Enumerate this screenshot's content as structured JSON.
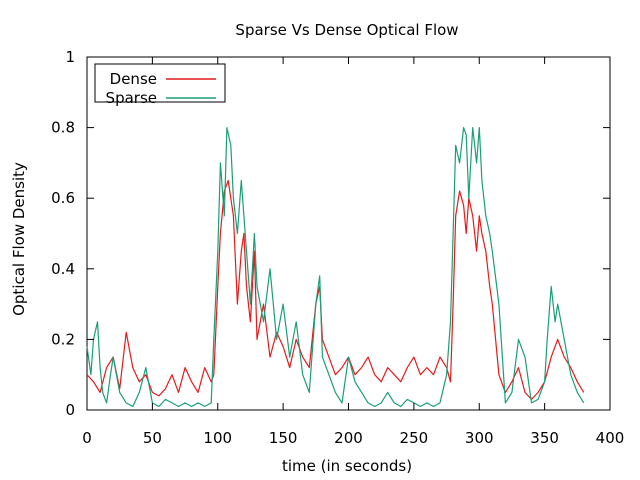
{
  "chart_data": {
    "type": "line",
    "title": "Sparse Vs Dense Optical Flow",
    "xlabel": "time (in seconds)",
    "ylabel": "Optical Flow Density",
    "xlim": [
      0,
      400
    ],
    "ylim": [
      0,
      1
    ],
    "xticks": [
      "0",
      "50",
      "100",
      "150",
      "200",
      "250",
      "300",
      "350",
      "400"
    ],
    "yticks": [
      "0",
      "0.2",
      "0.4",
      "0.6",
      "0.8",
      "1"
    ],
    "grid": false,
    "legend_position": "top-left",
    "series": [
      {
        "name": "Dense",
        "color": "#e41a1c",
        "x": [
          0,
          5,
          10,
          15,
          20,
          25,
          30,
          35,
          40,
          45,
          50,
          55,
          60,
          65,
          70,
          75,
          80,
          85,
          90,
          95,
          97,
          100,
          102,
          105,
          108,
          110,
          112,
          115,
          118,
          120,
          122,
          125,
          128,
          130,
          135,
          140,
          145,
          150,
          155,
          160,
          165,
          170,
          175,
          178,
          180,
          185,
          190,
          195,
          200,
          205,
          210,
          215,
          220,
          225,
          230,
          235,
          240,
          245,
          250,
          255,
          260,
          265,
          270,
          275,
          278,
          280,
          282,
          285,
          288,
          290,
          292,
          295,
          298,
          300,
          302,
          305,
          308,
          310,
          315,
          320,
          325,
          330,
          335,
          340,
          345,
          350,
          355,
          360,
          365,
          370,
          375,
          380
        ],
        "values": [
          0.1,
          0.08,
          0.05,
          0.12,
          0.15,
          0.06,
          0.22,
          0.12,
          0.08,
          0.1,
          0.05,
          0.04,
          0.06,
          0.1,
          0.05,
          0.12,
          0.08,
          0.05,
          0.12,
          0.08,
          0.1,
          0.35,
          0.5,
          0.62,
          0.65,
          0.6,
          0.55,
          0.3,
          0.45,
          0.5,
          0.35,
          0.25,
          0.45,
          0.2,
          0.3,
          0.15,
          0.22,
          0.18,
          0.12,
          0.2,
          0.15,
          0.12,
          0.3,
          0.35,
          0.2,
          0.15,
          0.1,
          0.12,
          0.15,
          0.1,
          0.12,
          0.15,
          0.1,
          0.08,
          0.12,
          0.1,
          0.08,
          0.12,
          0.15,
          0.1,
          0.12,
          0.1,
          0.15,
          0.12,
          0.08,
          0.3,
          0.55,
          0.62,
          0.58,
          0.5,
          0.6,
          0.55,
          0.45,
          0.55,
          0.5,
          0.45,
          0.35,
          0.3,
          0.1,
          0.05,
          0.08,
          0.12,
          0.05,
          0.03,
          0.05,
          0.08,
          0.15,
          0.2,
          0.15,
          0.12,
          0.08,
          0.05
        ]
      },
      {
        "name": "Sparse",
        "color": "#1a9e77",
        "x": [
          0,
          3,
          5,
          8,
          10,
          12,
          15,
          18,
          20,
          25,
          30,
          35,
          40,
          45,
          50,
          55,
          60,
          65,
          70,
          75,
          80,
          85,
          90,
          95,
          97,
          100,
          102,
          105,
          107,
          110,
          112,
          115,
          118,
          120,
          122,
          125,
          128,
          130,
          135,
          140,
          145,
          150,
          155,
          160,
          165,
          170,
          175,
          178,
          180,
          185,
          190,
          195,
          200,
          205,
          210,
          215,
          220,
          225,
          230,
          235,
          240,
          245,
          250,
          255,
          260,
          265,
          270,
          275,
          278,
          280,
          282,
          285,
          288,
          290,
          292,
          295,
          298,
          300,
          302,
          305,
          308,
          310,
          315,
          320,
          325,
          330,
          335,
          340,
          345,
          350,
          352,
          355,
          358,
          360,
          365,
          370,
          375,
          380
        ],
        "values": [
          0.18,
          0.1,
          0.2,
          0.25,
          0.12,
          0.05,
          0.02,
          0.1,
          0.15,
          0.05,
          0.02,
          0.01,
          0.05,
          0.12,
          0.02,
          0.01,
          0.03,
          0.02,
          0.01,
          0.02,
          0.01,
          0.02,
          0.01,
          0.02,
          0.2,
          0.45,
          0.7,
          0.55,
          0.8,
          0.75,
          0.6,
          0.5,
          0.65,
          0.55,
          0.45,
          0.3,
          0.5,
          0.35,
          0.25,
          0.4,
          0.2,
          0.3,
          0.15,
          0.25,
          0.1,
          0.05,
          0.3,
          0.38,
          0.15,
          0.1,
          0.05,
          0.02,
          0.15,
          0.08,
          0.05,
          0.02,
          0.01,
          0.02,
          0.05,
          0.02,
          0.01,
          0.03,
          0.02,
          0.01,
          0.02,
          0.01,
          0.02,
          0.1,
          0.25,
          0.5,
          0.75,
          0.7,
          0.8,
          0.78,
          0.6,
          0.8,
          0.7,
          0.8,
          0.65,
          0.55,
          0.5,
          0.45,
          0.3,
          0.02,
          0.05,
          0.2,
          0.15,
          0.02,
          0.03,
          0.08,
          0.2,
          0.35,
          0.25,
          0.3,
          0.2,
          0.1,
          0.05,
          0.02
        ]
      }
    ]
  }
}
